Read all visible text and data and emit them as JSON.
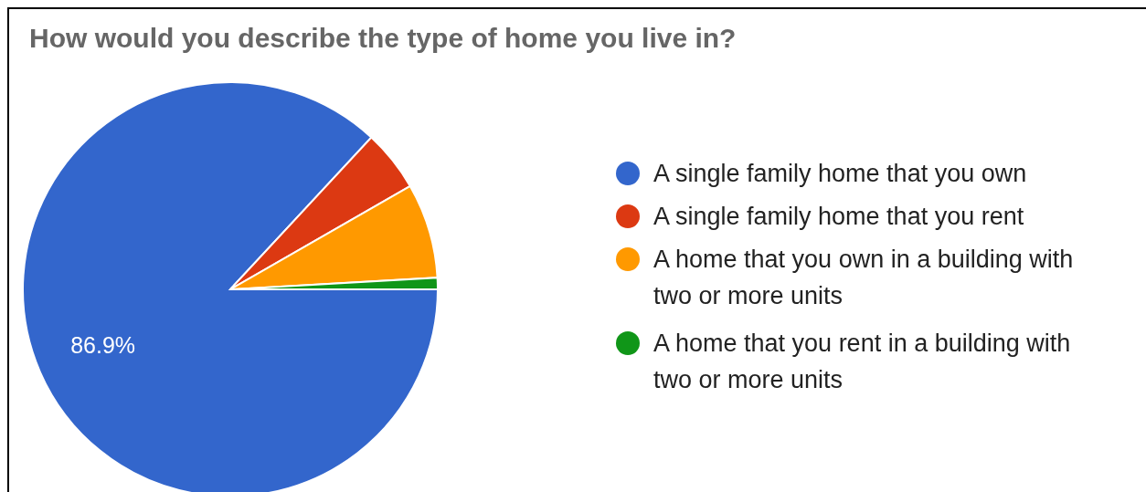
{
  "chart_data": {
    "type": "pie",
    "title": "How would you describe the type of home you live in?",
    "categories": [
      "A single family home that you own",
      "A single family home that you rent",
      "A home that you own in a building with two or more units",
      "A home that you rent in a building with two or more units"
    ],
    "values": [
      86.9,
      4.8,
      7.4,
      0.9
    ],
    "colors": [
      "#3366cc",
      "#dc3912",
      "#ff9900",
      "#109618"
    ],
    "value_labels": [
      "86.9%",
      null,
      null,
      null
    ],
    "legend": "right"
  }
}
